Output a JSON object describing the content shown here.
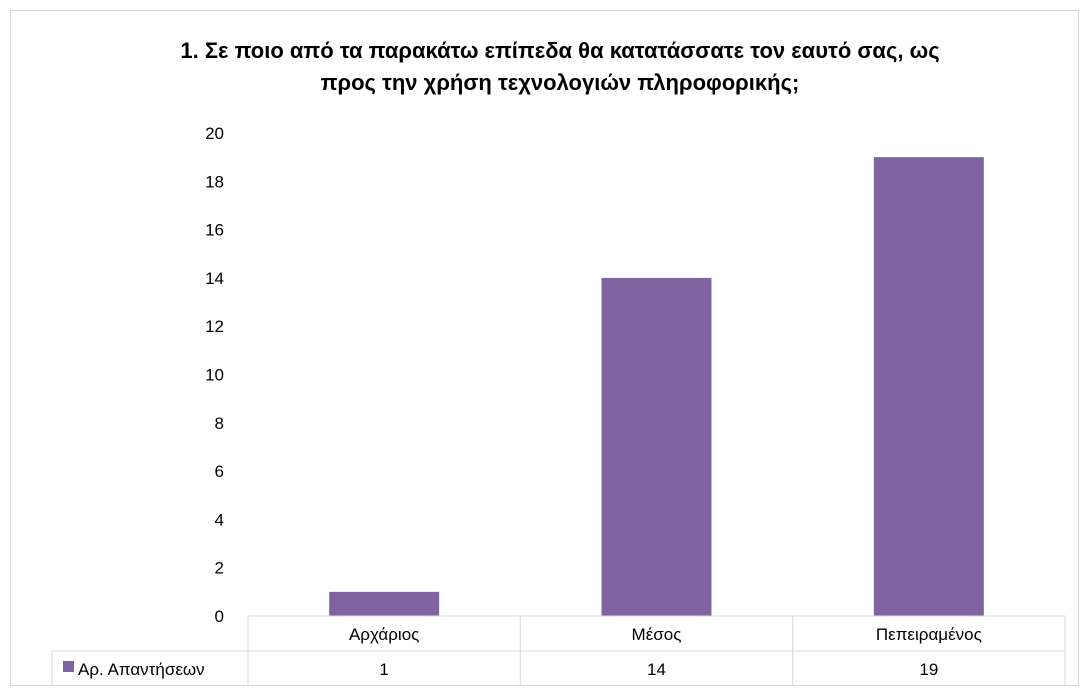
{
  "chart_data": {
    "type": "bar",
    "title_lines": [
      "1. Σε ποιο από τα παρακάτω επίπεδα θα κατατάσσατε τον εαυτό σας, ως",
      "προς την χρήση τεχνολογιών πληροφορικής;"
    ],
    "categories": [
      "Αρχάριος",
      "Μέσος",
      "Πεπειραμένος"
    ],
    "series": [
      {
        "name": "Αρ. Απαντήσεων",
        "values": [
          1,
          14,
          19
        ],
        "color": "#8064a2"
      }
    ],
    "ylim": [
      0,
      20
    ],
    "yticks": [
      0,
      2,
      4,
      6,
      8,
      10,
      12,
      14,
      16,
      18,
      20
    ],
    "grid": false,
    "legend": "data-table",
    "data_table": true
  }
}
